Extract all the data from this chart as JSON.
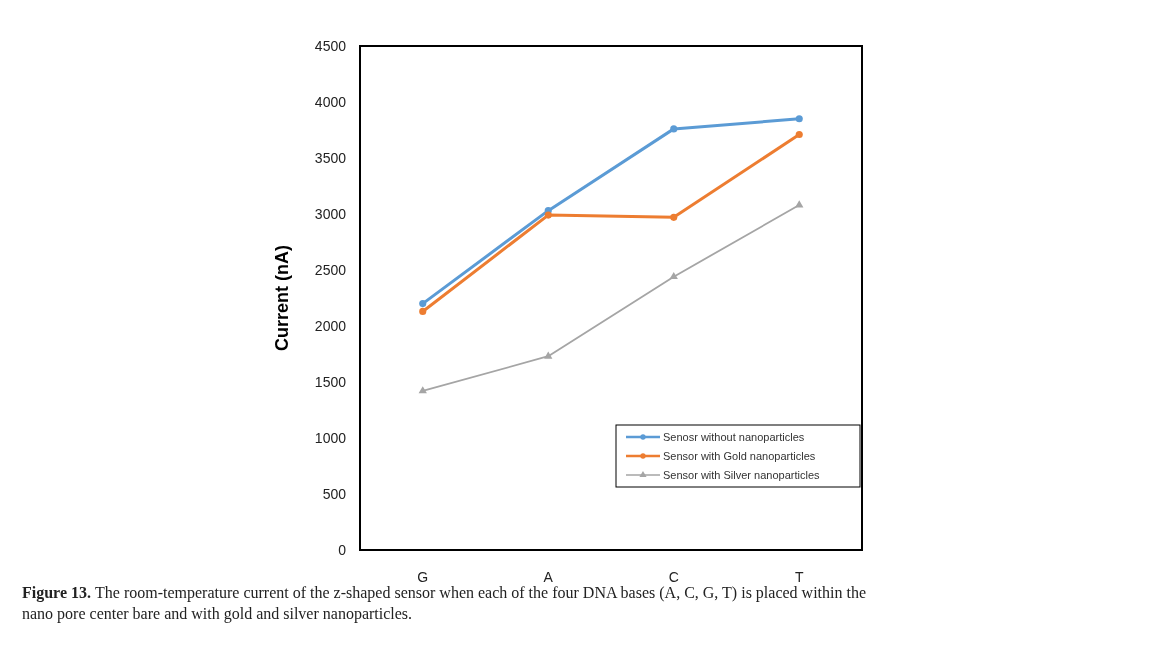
{
  "chart_data": {
    "type": "line",
    "ylabel": "Current (nA)",
    "categories": [
      "G",
      "A",
      "C",
      "T"
    ],
    "series": [
      {
        "name": "Senosr without nanoparticles",
        "color": "#5b9bd5",
        "marker": "circle",
        "values": [
          2200,
          3030,
          3760,
          3850
        ]
      },
      {
        "name": "Sensor with Gold nanoparticles",
        "color": "#ed7d31",
        "marker": "circle",
        "values": [
          2130,
          2990,
          2970,
          3710
        ]
      },
      {
        "name": "Sensor with Silver nanoparticles",
        "color": "#a5a5a5",
        "marker": "triangle",
        "values": [
          1420,
          1730,
          2440,
          3080
        ]
      }
    ],
    "ylim": [
      0,
      4500
    ],
    "yticks": [
      0,
      500,
      1000,
      1500,
      2000,
      2500,
      3000,
      3500,
      4000,
      4500
    ],
    "grid": false,
    "legend": "bottom right",
    "line_style": "solid",
    "annotations": [
      "Figure 13. The room-temperature current of the z-shaped sensor when each of the four DNA bases (A, C, G, T) is placed within the nano pore center bare and with gold and silver nanoparticles."
    ]
  }
}
